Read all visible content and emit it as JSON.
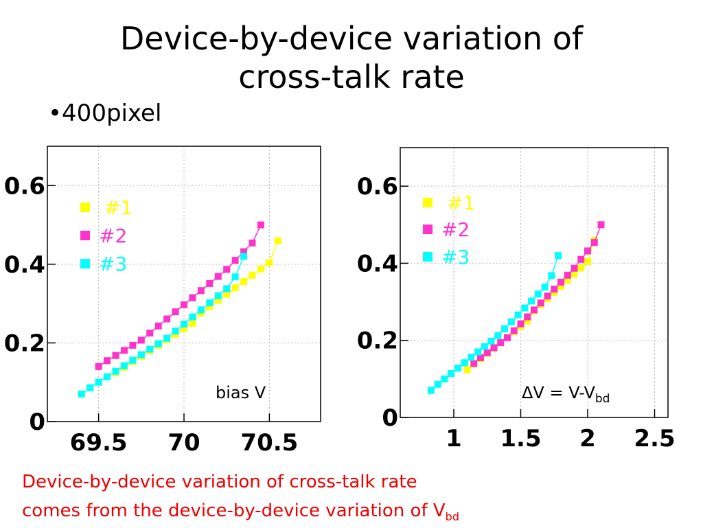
{
  "slide": {
    "title_line1": "Device-by-device variation of",
    "title_line2": "cross-talk rate",
    "bullet": "•400pixel",
    "caption_line1": "Device-by-device variation of cross-talk rate",
    "caption_line2_main": "comes from the device-by-device variation of V",
    "caption_line2_sub": "bd"
  },
  "chart_data": [
    {
      "type": "scatter",
      "xlabel": "bias V",
      "xlim": [
        69.2,
        70.8
      ],
      "ylim": [
        0,
        0.7
      ],
      "xticks": [
        "69.5",
        "70",
        "70.5"
      ],
      "xtick_values": [
        69.5,
        70,
        70.5
      ],
      "yticks": [
        "0",
        "0.2",
        "0.4",
        "0.6"
      ],
      "ytick_values": [
        0,
        0.2,
        0.4,
        0.6
      ],
      "grid": true,
      "legend_position": "top-left",
      "series": [
        {
          "name": "#1",
          "color": "#ffff00",
          "x": [
            69.6,
            69.65,
            69.7,
            69.75,
            69.8,
            69.85,
            69.9,
            69.95,
            70.0,
            70.05,
            70.1,
            70.15,
            70.2,
            70.25,
            70.3,
            70.35,
            70.4,
            70.45,
            70.5,
            70.55
          ],
          "y": [
            0.124,
            0.138,
            0.152,
            0.166,
            0.18,
            0.194,
            0.208,
            0.222,
            0.236,
            0.25,
            0.276,
            0.292,
            0.308,
            0.324,
            0.34,
            0.356,
            0.372,
            0.388,
            0.404,
            0.46
          ]
        },
        {
          "name": "#2",
          "color": "#ff33cc",
          "x": [
            69.5,
            69.55,
            69.6,
            69.65,
            69.7,
            69.75,
            69.8,
            69.85,
            69.9,
            69.95,
            70.0,
            70.05,
            70.1,
            70.15,
            70.2,
            70.25,
            70.3,
            70.35,
            70.4,
            70.45
          ],
          "y": [
            0.14,
            0.155,
            0.168,
            0.181,
            0.194,
            0.207,
            0.225,
            0.243,
            0.261,
            0.279,
            0.297,
            0.315,
            0.333,
            0.351,
            0.369,
            0.387,
            0.41,
            0.432,
            0.454,
            0.5
          ]
        },
        {
          "name": "#3",
          "color": "#00ffff",
          "x": [
            69.4,
            69.45,
            69.5,
            69.55,
            69.6,
            69.65,
            69.7,
            69.75,
            69.8,
            69.85,
            69.9,
            69.95,
            70.0,
            70.05,
            70.1,
            70.15,
            70.2,
            70.25,
            70.3,
            70.35
          ],
          "y": [
            0.07,
            0.086,
            0.1,
            0.114,
            0.128,
            0.142,
            0.156,
            0.17,
            0.184,
            0.198,
            0.212,
            0.23,
            0.248,
            0.266,
            0.284,
            0.302,
            0.32,
            0.338,
            0.368,
            0.42
          ]
        }
      ]
    },
    {
      "type": "scatter",
      "xlabel_main": "ΔV = V-V",
      "xlabel_sub": "bd",
      "xlim": [
        0.6,
        2.6
      ],
      "ylim": [
        0,
        0.7
      ],
      "xticks": [
        "1",
        "1.5",
        "2",
        "2.5"
      ],
      "xtick_values": [
        1,
        1.5,
        2,
        2.5
      ],
      "yticks": [
        "0",
        "0.2",
        "0.4",
        "0.6"
      ],
      "ytick_values": [
        0,
        0.2,
        0.4,
        0.6
      ],
      "grid": true,
      "legend_position": "top-left",
      "series": [
        {
          "name": "#1",
          "color": "#ffff00",
          "x": [
            1.1,
            1.15,
            1.2,
            1.25,
            1.3,
            1.35,
            1.4,
            1.45,
            1.5,
            1.55,
            1.6,
            1.65,
            1.7,
            1.75,
            1.8,
            1.85,
            1.9,
            1.95,
            2.0,
            2.05
          ],
          "y": [
            0.124,
            0.138,
            0.152,
            0.166,
            0.18,
            0.194,
            0.208,
            0.222,
            0.236,
            0.25,
            0.276,
            0.292,
            0.308,
            0.324,
            0.34,
            0.356,
            0.372,
            0.388,
            0.404,
            0.46
          ]
        },
        {
          "name": "#2",
          "color": "#ff33cc",
          "x": [
            1.15,
            1.2,
            1.25,
            1.3,
            1.35,
            1.4,
            1.45,
            1.5,
            1.55,
            1.6,
            1.65,
            1.7,
            1.75,
            1.8,
            1.85,
            1.9,
            1.95,
            2.0,
            2.05,
            2.1
          ],
          "y": [
            0.14,
            0.155,
            0.168,
            0.181,
            0.194,
            0.207,
            0.225,
            0.243,
            0.261,
            0.279,
            0.297,
            0.315,
            0.333,
            0.351,
            0.369,
            0.387,
            0.41,
            0.432,
            0.454,
            0.5
          ]
        },
        {
          "name": "#3",
          "color": "#00ffff",
          "x": [
            0.83,
            0.88,
            0.93,
            0.98,
            1.03,
            1.08,
            1.13,
            1.18,
            1.23,
            1.28,
            1.33,
            1.38,
            1.43,
            1.48,
            1.53,
            1.58,
            1.63,
            1.68,
            1.73,
            1.78
          ],
          "y": [
            0.07,
            0.086,
            0.1,
            0.114,
            0.128,
            0.142,
            0.156,
            0.17,
            0.184,
            0.198,
            0.212,
            0.23,
            0.248,
            0.266,
            0.284,
            0.302,
            0.32,
            0.338,
            0.368,
            0.42
          ]
        }
      ]
    }
  ]
}
